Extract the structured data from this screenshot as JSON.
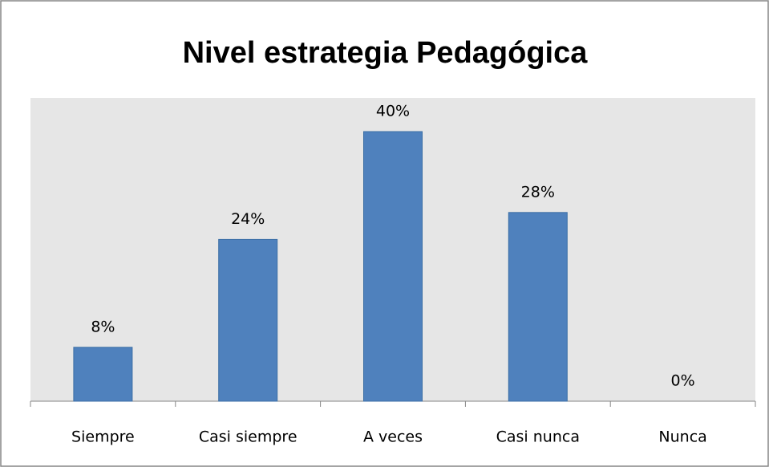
{
  "chart_data": {
    "type": "bar",
    "title": "Nivel estrategia Pedagógica",
    "categories": [
      "Siempre",
      "Casi siempre",
      "A veces",
      "Casi nunca",
      "Nunca"
    ],
    "values": [
      8,
      24,
      40,
      28,
      0
    ],
    "value_labels": [
      "8%",
      "24%",
      "40%",
      "28%",
      "0%"
    ],
    "color": "#4f81bd",
    "ylim": [
      0,
      45
    ]
  }
}
